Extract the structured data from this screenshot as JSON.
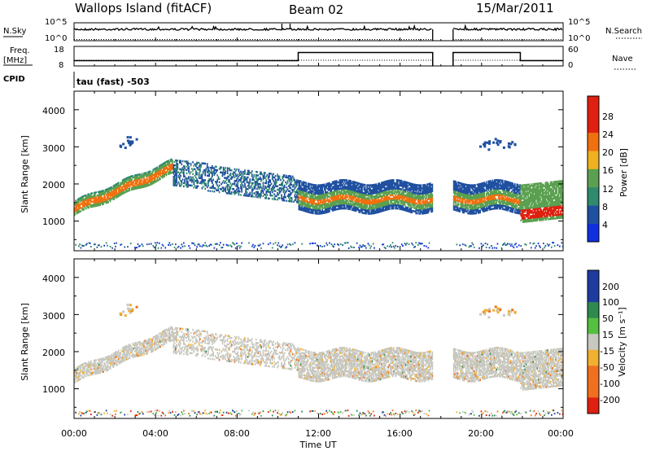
{
  "header": {
    "title": "Wallops Island (fitACF)",
    "beam": "Beam 02",
    "date": "15/Mar/2011"
  },
  "top_panels": {
    "nsky_label": "N.Sky",
    "nsky_ticks": [
      "10^5",
      "10^0"
    ],
    "nsearch_label": "N.Search",
    "nsearch_ticks": [
      "10^5",
      "10^0"
    ],
    "freq_label_1": "Freq.",
    "freq_label_2": "[MHz]",
    "freq_ticks": [
      "18",
      "8"
    ],
    "nave_label": "Nave",
    "nave_ticks": [
      "60",
      "0"
    ],
    "cpid_label": "CPID",
    "cpid_text": "tau (fast) -503"
  },
  "chart_data": [
    {
      "type": "heatmap",
      "title": "",
      "xlabel": "Time UT",
      "ylabel": "Slant Range [km]",
      "x_ticks": [
        "00:00",
        "04:00",
        "08:00",
        "12:00",
        "16:00",
        "20:00",
        "00:00"
      ],
      "xlim": [
        0,
        24
      ],
      "y_ticks": [
        "1000",
        "2000",
        "3000",
        "4000"
      ],
      "ylim": [
        200,
        4500
      ],
      "colorbar_label": "Power [dB]",
      "colorbar_ticks": [
        "4",
        "8",
        "12",
        "16",
        "20",
        "24",
        "28"
      ],
      "colorbar_range": [
        0,
        32
      ],
      "colors": [
        "#1030e0",
        "#2050a0",
        "#2f8a6e",
        "#5aa050",
        "#f0b020",
        "#f07010",
        "#e02010"
      ],
      "data_gaps_ut": [
        [
          17.6,
          18.6
        ]
      ]
    },
    {
      "type": "heatmap",
      "title": "",
      "xlabel": "Time UT",
      "ylabel": "Slant Range [km]",
      "x_ticks": [
        "00:00",
        "04:00",
        "08:00",
        "12:00",
        "16:00",
        "20:00",
        "00:00"
      ],
      "xlim": [
        0,
        24
      ],
      "y_ticks": [
        "1000",
        "2000",
        "3000",
        "4000"
      ],
      "ylim": [
        200,
        4500
      ],
      "colorbar_label": "Velocity [m s⁻¹]",
      "colorbar_ticks": [
        "200",
        "100",
        "50",
        "15",
        "-15",
        "-50",
        "-100",
        "-200"
      ],
      "colorbar_range": [
        -250,
        250
      ],
      "colors": [
        "#1e3ca0",
        "#2f8a50",
        "#55c040",
        "#c8c8c0",
        "#f0b030",
        "#f07020",
        "#e02010"
      ],
      "data_gaps_ut": [
        [
          17.6,
          18.6
        ]
      ]
    }
  ],
  "colors": {
    "power_main": "#2f8a6e",
    "ground_grey": "#c8c8c0"
  }
}
